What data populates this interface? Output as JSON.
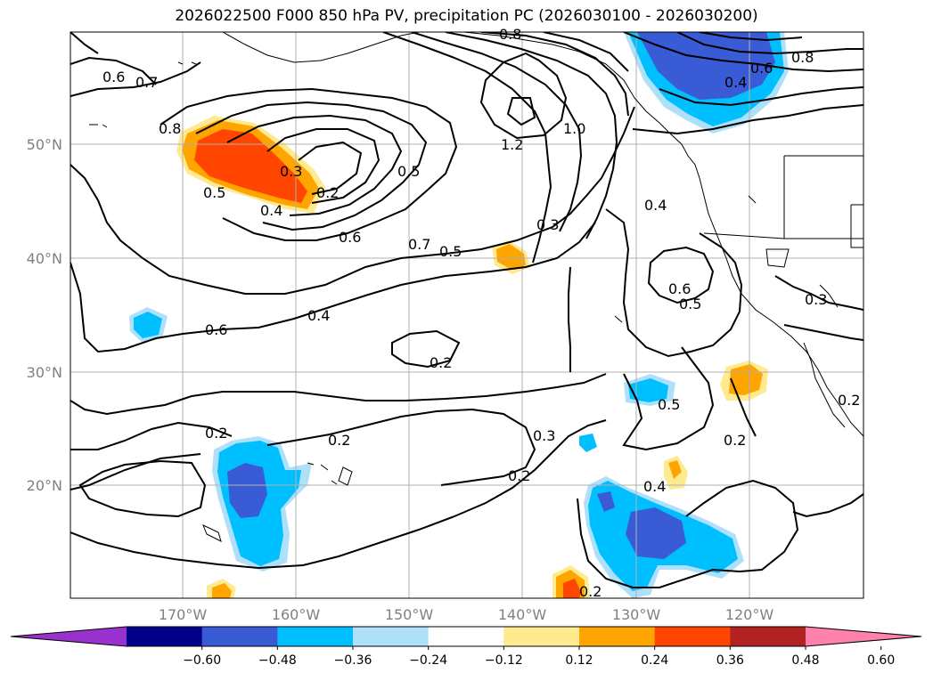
{
  "title": "2026022500 F000 850 hPa PV, precipitation PC (2026030100 - 2026030200)",
  "axes": {
    "lat_labels": [
      "50°N",
      "40°N",
      "30°N",
      "20°N"
    ],
    "lon_labels": [
      "170°W",
      "160°W",
      "150°W",
      "140°W",
      "130°W",
      "120°W"
    ]
  },
  "contour_labels": [
    "0.6",
    "0.7",
    "0.8",
    "0.5",
    "0.3",
    "0.4",
    "0.2",
    "0.6",
    "0.7",
    "0.5",
    "0.6",
    "0.4",
    "0.2",
    "1.2",
    "1.0",
    "0.3",
    "0.4",
    "0.6",
    "0.5",
    "0.5",
    "0.2",
    "0.2",
    "0.2",
    "0.3",
    "0.2",
    "0.4",
    "0.2",
    "0.8",
    "0.6",
    "0.4",
    "0.3",
    "0.2",
    "0.8"
  ],
  "colorbar": {
    "ticks": [
      "−0.60",
      "−0.48",
      "−0.36",
      "−0.24",
      "−0.12",
      "0.12",
      "0.24",
      "0.36",
      "0.48",
      "0.60"
    ],
    "colors": [
      "#9932cc",
      "#00008b",
      "#3a5bd6",
      "#00bfff",
      "#afe0fa",
      "#ffffff",
      "#ffea8f",
      "#ffa500",
      "#ff4500",
      "#b22222",
      "#ff82ab"
    ]
  }
}
